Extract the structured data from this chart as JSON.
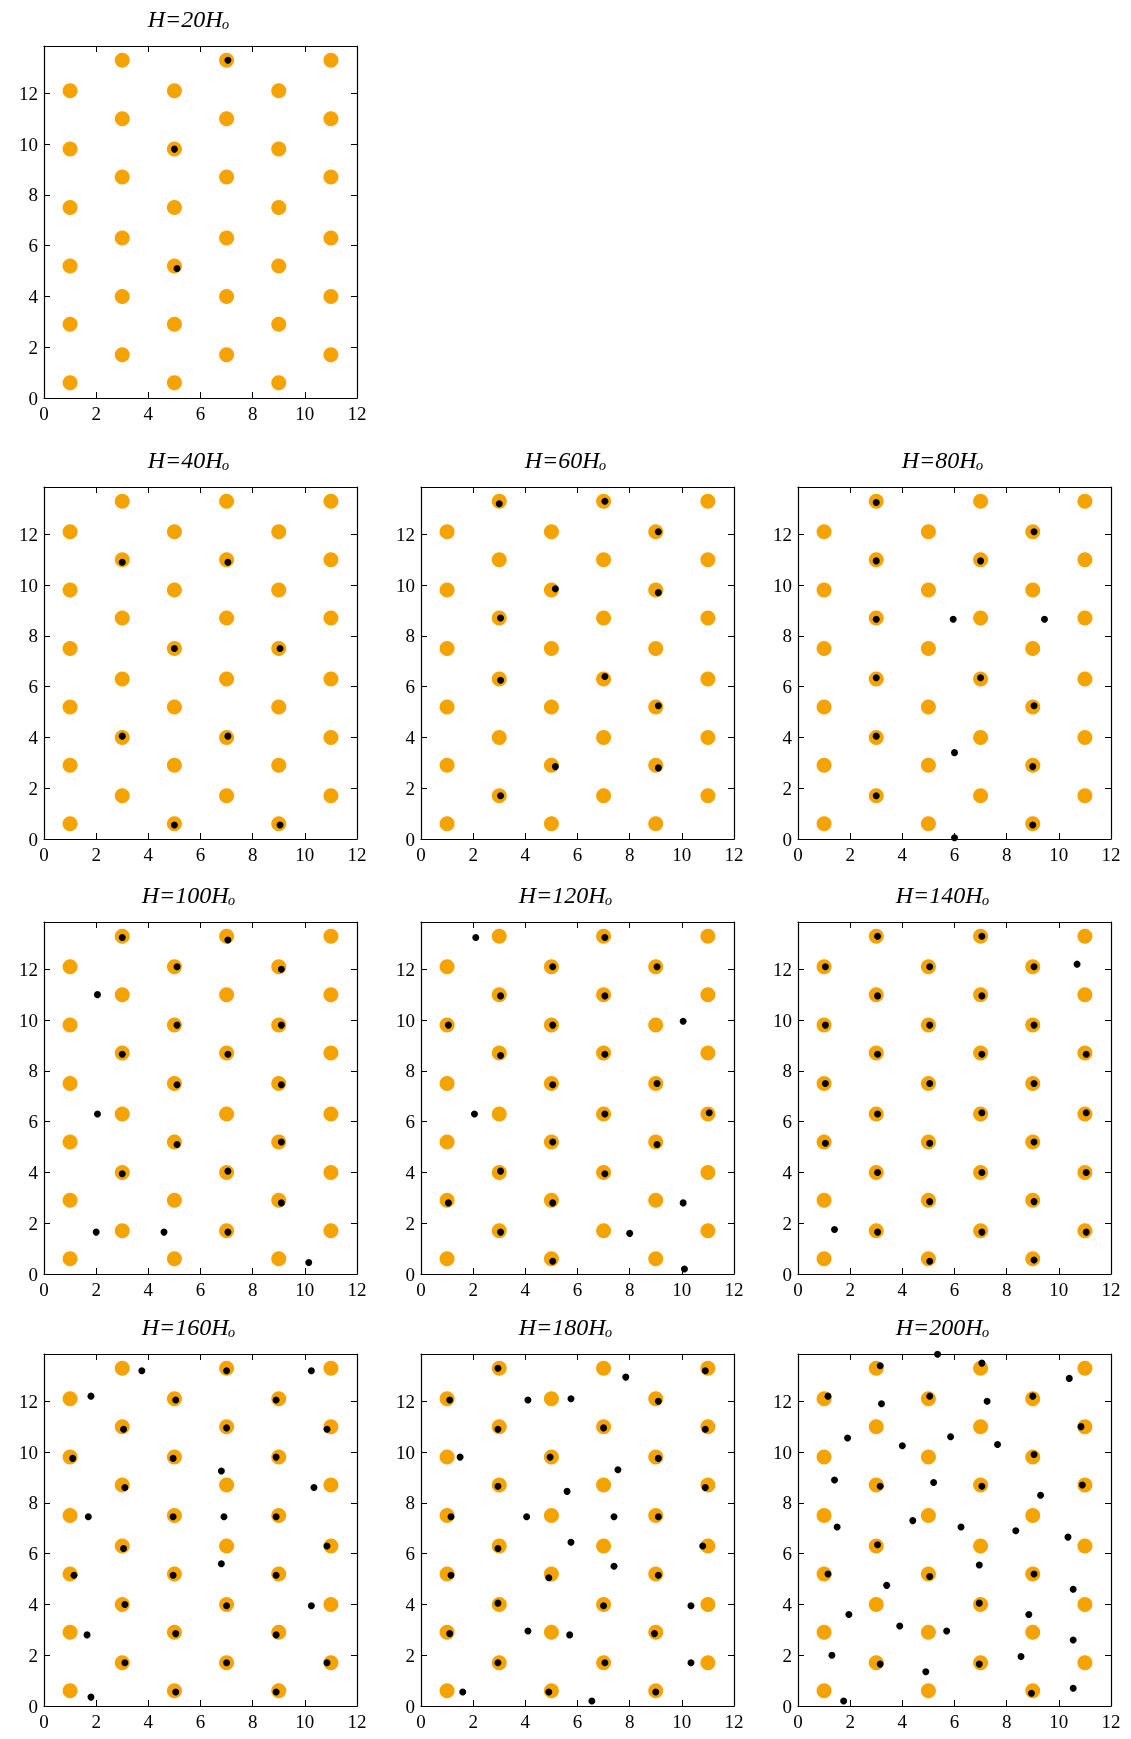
{
  "chart_data": [
    {
      "type": "scatter",
      "title": "H=20Hₒ",
      "xlim": [
        0,
        12
      ],
      "ylim": [
        0,
        13.86
      ],
      "xticks": [
        0,
        2,
        4,
        6,
        8,
        10,
        12
      ],
      "yticks": [
        0,
        2,
        4,
        6,
        8,
        10,
        12
      ],
      "marker": "circle",
      "series": [
        {
          "color": "#f5a300",
          "x": [
            1,
            1,
            1,
            1,
            1,
            1,
            3,
            3,
            3,
            3,
            3,
            3,
            5,
            5,
            5,
            5,
            5,
            5,
            7,
            7,
            7,
            7,
            7,
            7,
            9,
            9,
            9,
            9,
            9,
            9,
            11,
            11,
            11,
            11,
            11,
            11
          ],
          "values": [
            0.6,
            2.9,
            5.2,
            7.5,
            9.8,
            12.1,
            1.7,
            4.0,
            6.3,
            8.7,
            11.0,
            13.3,
            0.6,
            2.9,
            5.2,
            7.5,
            9.8,
            12.1,
            1.7,
            4.0,
            6.3,
            8.7,
            11.0,
            13.3,
            0.6,
            2.9,
            5.2,
            7.5,
            9.8,
            12.1,
            1.7,
            4.0,
            6.3,
            8.7,
            11.0,
            13.3
          ]
        },
        {
          "color": "#000000",
          "x": [
            7.05,
            5.0,
            5.1
          ],
          "values": [
            13.3,
            9.8,
            5.1
          ]
        }
      ]
    },
    {
      "type": "scatter",
      "title": "H=40Hₒ",
      "xlim": [
        0,
        12
      ],
      "ylim": [
        0,
        13.86
      ],
      "xticks": [
        0,
        2,
        4,
        6,
        8,
        10,
        12
      ],
      "yticks": [
        0,
        2,
        4,
        6,
        8,
        10,
        12
      ],
      "marker": "circle",
      "series": [
        {
          "color": "#f5a300",
          "x": [
            1,
            1,
            1,
            1,
            1,
            1,
            3,
            3,
            3,
            3,
            3,
            3,
            5,
            5,
            5,
            5,
            5,
            5,
            7,
            7,
            7,
            7,
            7,
            7,
            9,
            9,
            9,
            9,
            9,
            9,
            11,
            11,
            11,
            11,
            11,
            11
          ],
          "values": [
            0.6,
            2.9,
            5.2,
            7.5,
            9.8,
            12.1,
            1.7,
            4.0,
            6.3,
            8.7,
            11.0,
            13.3,
            0.6,
            2.9,
            5.2,
            7.5,
            9.8,
            12.1,
            1.7,
            4.0,
            6.3,
            8.7,
            11.0,
            13.3,
            0.6,
            2.9,
            5.2,
            7.5,
            9.8,
            12.1,
            1.7,
            4.0,
            6.3,
            8.7,
            11.0,
            13.3
          ]
        },
        {
          "color": "#000000",
          "x": [
            3.0,
            7.05,
            5.0,
            9.05,
            3.0,
            7.05,
            5.0,
            9.05
          ],
          "values": [
            10.9,
            10.9,
            7.5,
            7.5,
            4.05,
            4.05,
            0.55,
            0.55
          ]
        }
      ]
    },
    {
      "type": "scatter",
      "title": "H=60Hₒ",
      "xlim": [
        0,
        12
      ],
      "ylim": [
        0,
        13.86
      ],
      "xticks": [
        0,
        2,
        4,
        6,
        8,
        10,
        12
      ],
      "yticks": [
        0,
        2,
        4,
        6,
        8,
        10,
        12
      ],
      "marker": "circle",
      "series": [
        {
          "color": "#f5a300",
          "x": [
            1,
            1,
            1,
            1,
            1,
            1,
            3,
            3,
            3,
            3,
            3,
            3,
            5,
            5,
            5,
            5,
            5,
            5,
            7,
            7,
            7,
            7,
            7,
            7,
            9,
            9,
            9,
            9,
            9,
            9,
            11,
            11,
            11,
            11,
            11,
            11
          ],
          "values": [
            0.6,
            2.9,
            5.2,
            7.5,
            9.8,
            12.1,
            1.7,
            4.0,
            6.3,
            8.7,
            11.0,
            13.3,
            0.6,
            2.9,
            5.2,
            7.5,
            9.8,
            12.1,
            1.7,
            4.0,
            6.3,
            8.7,
            11.0,
            13.3,
            0.6,
            2.9,
            5.2,
            7.5,
            9.8,
            12.1,
            1.7,
            4.0,
            6.3,
            8.7,
            11.0,
            13.3
          ]
        },
        {
          "color": "#000000",
          "x": [
            3.0,
            7.05,
            9.1,
            5.15,
            9.1,
            3.05,
            3.05,
            7.05,
            9.1,
            5.15,
            9.1,
            3.05
          ],
          "values": [
            13.2,
            13.3,
            12.1,
            9.85,
            9.7,
            8.7,
            6.25,
            6.4,
            5.25,
            2.85,
            2.8,
            1.7
          ]
        }
      ]
    },
    {
      "type": "scatter",
      "title": "H=80Hₒ",
      "xlim": [
        0,
        12
      ],
      "ylim": [
        0,
        13.86
      ],
      "xticks": [
        0,
        2,
        4,
        6,
        8,
        10,
        12
      ],
      "yticks": [
        0,
        2,
        4,
        6,
        8,
        10,
        12
      ],
      "marker": "circle",
      "series": [
        {
          "color": "#f5a300",
          "x": [
            1,
            1,
            1,
            1,
            1,
            1,
            3,
            3,
            3,
            3,
            3,
            3,
            5,
            5,
            5,
            5,
            5,
            5,
            7,
            7,
            7,
            7,
            7,
            7,
            9,
            9,
            9,
            9,
            9,
            9,
            11,
            11,
            11,
            11,
            11,
            11
          ],
          "values": [
            0.6,
            2.9,
            5.2,
            7.5,
            9.8,
            12.1,
            1.7,
            4.0,
            6.3,
            8.7,
            11.0,
            13.3,
            0.6,
            2.9,
            5.2,
            7.5,
            9.8,
            12.1,
            1.7,
            4.0,
            6.3,
            8.7,
            11.0,
            13.3,
            0.6,
            2.9,
            5.2,
            7.5,
            9.8,
            12.1,
            1.7,
            4.0,
            6.3,
            8.7,
            11.0,
            13.3
          ]
        },
        {
          "color": "#000000",
          "x": [
            3.0,
            9.05,
            3.0,
            7.0,
            3.0,
            5.95,
            9.45,
            3.0,
            7.0,
            9.05,
            3.0,
            6.0,
            9.0,
            3.0,
            9.0,
            6.0
          ],
          "values": [
            13.25,
            12.1,
            10.95,
            10.95,
            8.65,
            8.65,
            8.65,
            6.35,
            6.35,
            5.25,
            4.05,
            3.4,
            2.85,
            1.7,
            0.55,
            0.05
          ]
        }
      ]
    },
    {
      "type": "scatter",
      "title": "H=100Hₒ",
      "xlim": [
        0,
        12
      ],
      "ylim": [
        0,
        13.86
      ],
      "xticks": [
        0,
        2,
        4,
        6,
        8,
        10,
        12
      ],
      "yticks": [
        0,
        2,
        4,
        6,
        8,
        10,
        12
      ],
      "marker": "circle",
      "series": [
        {
          "color": "#f5a300",
          "x": [
            1,
            1,
            1,
            1,
            1,
            1,
            3,
            3,
            3,
            3,
            3,
            3,
            5,
            5,
            5,
            5,
            5,
            5,
            7,
            7,
            7,
            7,
            7,
            7,
            9,
            9,
            9,
            9,
            9,
            9,
            11,
            11,
            11,
            11,
            11,
            11
          ],
          "values": [
            0.6,
            2.9,
            5.2,
            7.5,
            9.8,
            12.1,
            1.7,
            4.0,
            6.3,
            8.7,
            11.0,
            13.3,
            0.6,
            2.9,
            5.2,
            7.5,
            9.8,
            12.1,
            1.7,
            4.0,
            6.3,
            8.7,
            11.0,
            13.3,
            0.6,
            2.9,
            5.2,
            7.5,
            9.8,
            12.1,
            1.7,
            4.0,
            6.3,
            8.7,
            11.0,
            13.3
          ]
        },
        {
          "color": "#000000",
          "x": [
            3.0,
            7.05,
            5.1,
            9.1,
            2.05,
            5.1,
            9.1,
            3.0,
            7.05,
            5.1,
            9.1,
            2.05,
            5.1,
            9.1,
            3.0,
            7.05,
            9.1,
            2.0,
            4.6,
            7.05,
            10.15
          ],
          "values": [
            13.25,
            13.15,
            12.1,
            12.0,
            11.0,
            9.8,
            9.8,
            8.65,
            8.65,
            7.45,
            7.45,
            6.3,
            5.1,
            5.2,
            3.95,
            4.05,
            2.8,
            1.65,
            1.65,
            1.65,
            0.45
          ]
        }
      ]
    },
    {
      "type": "scatter",
      "title": "H=120Hₒ",
      "xlim": [
        0,
        12
      ],
      "ylim": [
        0,
        13.86
      ],
      "xticks": [
        0,
        2,
        4,
        6,
        8,
        10,
        12
      ],
      "yticks": [
        0,
        2,
        4,
        6,
        8,
        10,
        12
      ],
      "marker": "circle",
      "series": [
        {
          "color": "#f5a300",
          "x": [
            1,
            1,
            1,
            1,
            1,
            1,
            3,
            3,
            3,
            3,
            3,
            3,
            5,
            5,
            5,
            5,
            5,
            5,
            7,
            7,
            7,
            7,
            7,
            7,
            9,
            9,
            9,
            9,
            9,
            9,
            11,
            11,
            11,
            11,
            11,
            11
          ],
          "values": [
            0.6,
            2.9,
            5.2,
            7.5,
            9.8,
            12.1,
            1.7,
            4.0,
            6.3,
            8.7,
            11.0,
            13.3,
            0.6,
            2.9,
            5.2,
            7.5,
            9.8,
            12.1,
            1.7,
            4.0,
            6.3,
            8.7,
            11.0,
            13.3,
            0.6,
            2.9,
            5.2,
            7.5,
            9.8,
            12.1,
            1.7,
            4.0,
            6.3,
            8.7,
            11.0,
            13.3
          ]
        },
        {
          "color": "#000000",
          "x": [
            2.1,
            7.05,
            5.05,
            9.05,
            3.05,
            7.05,
            1.05,
            5.05,
            10.05,
            3.05,
            7.05,
            5.05,
            9.05,
            2.05,
            7.05,
            11.05,
            5.05,
            9.05,
            3.05,
            7.05,
            1.05,
            5.05,
            10.05,
            3.05,
            8.0,
            5.05,
            10.1
          ],
          "values": [
            13.25,
            13.25,
            12.1,
            12.1,
            10.95,
            10.95,
            9.8,
            9.8,
            9.95,
            8.6,
            8.65,
            7.45,
            7.5,
            6.3,
            6.3,
            6.35,
            5.2,
            5.1,
            4.05,
            3.95,
            2.8,
            2.8,
            2.8,
            1.65,
            1.6,
            0.5,
            0.2
          ]
        }
      ]
    },
    {
      "type": "scatter",
      "title": "H=140Hₒ",
      "xlim": [
        0,
        12
      ],
      "ylim": [
        0,
        13.86
      ],
      "xticks": [
        0,
        2,
        4,
        6,
        8,
        10,
        12
      ],
      "yticks": [
        0,
        2,
        4,
        6,
        8,
        10,
        12
      ],
      "marker": "circle",
      "series": [
        {
          "color": "#f5a300",
          "x": [
            1,
            1,
            1,
            1,
            1,
            1,
            3,
            3,
            3,
            3,
            3,
            3,
            5,
            5,
            5,
            5,
            5,
            5,
            7,
            7,
            7,
            7,
            7,
            7,
            9,
            9,
            9,
            9,
            9,
            9,
            11,
            11,
            11,
            11,
            11,
            11
          ],
          "values": [
            0.6,
            2.9,
            5.2,
            7.5,
            9.8,
            12.1,
            1.7,
            4.0,
            6.3,
            8.7,
            11.0,
            13.3,
            0.6,
            2.9,
            5.2,
            7.5,
            9.8,
            12.1,
            1.7,
            4.0,
            6.3,
            8.7,
            11.0,
            13.3,
            0.6,
            2.9,
            5.2,
            7.5,
            9.8,
            12.1,
            1.7,
            4.0,
            6.3,
            8.7,
            11.0,
            13.3
          ]
        },
        {
          "color": "#000000",
          "x": [
            1.05,
            1.05,
            1.05,
            1.05,
            3.05,
            3.05,
            3.05,
            3.05,
            3.05,
            3.05,
            5.05,
            5.05,
            5.05,
            5.05,
            5.05,
            5.05,
            7.05,
            7.05,
            7.05,
            7.05,
            7.05,
            7.05,
            9.05,
            9.05,
            9.05,
            9.05,
            9.05,
            9.05,
            11.05,
            11.05,
            11.05,
            11.05,
            10.7,
            1.4
          ],
          "values": [
            12.1,
            9.8,
            7.5,
            5.15,
            13.3,
            10.95,
            8.65,
            6.3,
            4.0,
            1.65,
            12.1,
            9.8,
            7.5,
            5.15,
            2.85,
            0.5,
            13.3,
            10.95,
            8.65,
            6.35,
            4.0,
            1.65,
            12.1,
            9.8,
            7.5,
            5.2,
            2.85,
            0.55,
            8.65,
            6.35,
            4.0,
            1.65,
            12.2,
            1.75
          ]
        }
      ]
    },
    {
      "type": "scatter",
      "title": "H=160Hₒ",
      "xlim": [
        0,
        12
      ],
      "ylim": [
        0,
        13.86
      ],
      "xticks": [
        0,
        2,
        4,
        6,
        8,
        10,
        12
      ],
      "yticks": [
        0,
        2,
        4,
        6,
        8,
        10,
        12
      ],
      "marker": "circle",
      "series": [
        {
          "color": "#f5a300",
          "x": [
            1,
            1,
            1,
            1,
            1,
            1,
            3,
            3,
            3,
            3,
            3,
            3,
            5,
            5,
            5,
            5,
            5,
            5,
            7,
            7,
            7,
            7,
            7,
            7,
            9,
            9,
            9,
            9,
            9,
            9,
            11,
            11,
            11,
            11,
            11,
            11
          ],
          "values": [
            0.6,
            2.9,
            5.2,
            7.5,
            9.8,
            12.1,
            1.7,
            4.0,
            6.3,
            8.7,
            11.0,
            13.3,
            0.6,
            2.9,
            5.2,
            7.5,
            9.8,
            12.1,
            1.7,
            4.0,
            6.3,
            8.7,
            11.0,
            13.3,
            0.6,
            2.9,
            5.2,
            7.5,
            9.8,
            12.1,
            1.7,
            4.0,
            6.3,
            8.7,
            11.0,
            13.3
          ]
        },
        {
          "color": "#000000",
          "x": [
            3.75,
            7.0,
            10.25,
            1.8,
            5.05,
            8.9,
            3.05,
            7.0,
            10.85,
            1.1,
            4.95,
            8.9,
            6.8,
            3.1,
            10.35,
            1.7,
            4.95,
            6.9,
            8.9,
            3.05,
            10.85,
            6.8,
            1.15,
            4.95,
            8.9,
            3.1,
            7.0,
            10.25,
            1.65,
            5.05,
            8.9,
            3.1,
            7.0,
            10.85,
            1.8,
            5.05,
            8.9
          ],
          "values": [
            13.2,
            13.2,
            13.2,
            12.2,
            12.05,
            12.05,
            10.9,
            10.95,
            10.9,
            9.75,
            9.75,
            9.8,
            9.25,
            8.6,
            8.6,
            7.45,
            7.45,
            7.45,
            7.45,
            6.2,
            6.3,
            5.6,
            5.15,
            5.15,
            5.15,
            4.0,
            3.95,
            3.95,
            2.8,
            2.85,
            2.8,
            1.7,
            1.7,
            1.7,
            0.35,
            0.55,
            0.55
          ]
        }
      ]
    },
    {
      "type": "scatter",
      "title": "H=180Hₒ",
      "xlim": [
        0,
        12
      ],
      "ylim": [
        0,
        13.86
      ],
      "xticks": [
        0,
        2,
        4,
        6,
        8,
        10,
        12
      ],
      "yticks": [
        0,
        2,
        4,
        6,
        8,
        10,
        12
      ],
      "marker": "circle",
      "series": [
        {
          "color": "#f5a300",
          "x": [
            1,
            1,
            1,
            1,
            1,
            1,
            3,
            3,
            3,
            3,
            3,
            3,
            5,
            5,
            5,
            5,
            5,
            5,
            7,
            7,
            7,
            7,
            7,
            7,
            9,
            9,
            9,
            9,
            9,
            9,
            11,
            11,
            11,
            11,
            11,
            11
          ],
          "values": [
            0.6,
            2.9,
            5.2,
            7.5,
            9.8,
            12.1,
            1.7,
            4.0,
            6.3,
            8.7,
            11.0,
            13.3,
            0.6,
            2.9,
            5.2,
            7.5,
            9.8,
            12.1,
            1.7,
            4.0,
            6.3,
            8.7,
            11.0,
            13.3,
            0.6,
            2.9,
            5.2,
            7.5,
            9.8,
            12.1,
            1.7,
            4.0,
            6.3,
            8.7,
            11.0,
            13.3
          ]
        },
        {
          "color": "#000000",
          "x": [
            2.95,
            7.85,
            10.9,
            1.1,
            4.1,
            5.75,
            9.1,
            2.95,
            7.0,
            10.9,
            1.5,
            4.95,
            7.55,
            9.1,
            2.95,
            5.6,
            10.9,
            1.15,
            4.05,
            7.4,
            9.1,
            2.95,
            5.75,
            10.8,
            1.15,
            4.9,
            7.4,
            9.1,
            2.95,
            7.0,
            10.35,
            1.1,
            4.1,
            5.7,
            8.95,
            2.95,
            7.05,
            10.35,
            1.6,
            4.9,
            6.55,
            9.0
          ],
          "values": [
            13.3,
            12.95,
            13.2,
            12.05,
            12.05,
            12.1,
            12.0,
            10.9,
            10.95,
            10.9,
            9.8,
            9.8,
            9.3,
            9.75,
            8.65,
            8.45,
            8.6,
            7.45,
            7.45,
            7.45,
            7.45,
            6.2,
            6.45,
            6.3,
            5.15,
            5.05,
            5.5,
            5.15,
            4.05,
            3.95,
            3.95,
            2.85,
            2.95,
            2.8,
            2.85,
            1.7,
            1.7,
            1.7,
            0.55,
            0.55,
            0.2,
            0.55
          ]
        }
      ]
    },
    {
      "type": "scatter",
      "title": "H=200Hₒ",
      "xlim": [
        0,
        12
      ],
      "ylim": [
        0,
        13.86
      ],
      "xticks": [
        0,
        2,
        4,
        6,
        8,
        10,
        12
      ],
      "yticks": [
        0,
        2,
        4,
        6,
        8,
        10,
        12
      ],
      "marker": "circle",
      "series": [
        {
          "color": "#f5a300",
          "x": [
            1,
            1,
            1,
            1,
            1,
            1,
            3,
            3,
            3,
            3,
            3,
            3,
            5,
            5,
            5,
            5,
            5,
            5,
            7,
            7,
            7,
            7,
            7,
            7,
            9,
            9,
            9,
            9,
            9,
            9,
            11,
            11,
            11,
            11,
            11,
            11
          ],
          "values": [
            0.6,
            2.9,
            5.2,
            7.5,
            9.8,
            12.1,
            1.7,
            4.0,
            6.3,
            8.7,
            11.0,
            13.3,
            0.6,
            2.9,
            5.2,
            7.5,
            9.8,
            12.1,
            1.7,
            4.0,
            6.3,
            8.7,
            11.0,
            13.3,
            0.6,
            2.9,
            5.2,
            7.5,
            9.8,
            12.1,
            1.7,
            4.0,
            6.3,
            8.7,
            11.0,
            13.3
          ]
        },
        {
          "color": "#000000",
          "x": [
            5.35,
            3.15,
            7.05,
            10.4,
            1.15,
            5.05,
            9.0,
            3.2,
            7.25,
            10.85,
            1.9,
            5.85,
            4.0,
            7.65,
            9.05,
            1.4,
            5.2,
            3.15,
            7.05,
            10.9,
            9.3,
            4.4,
            1.5,
            6.25,
            8.35,
            10.35,
            3.05,
            6.95,
            1.15,
            5.05,
            9.05,
            3.4,
            10.55,
            6.95,
            1.95,
            8.85,
            3.9,
            5.7,
            10.55,
            1.3,
            8.55,
            3.15,
            6.95,
            4.9,
            10.55,
            8.95,
            1.75
          ],
          "values": [
            13.85,
            13.4,
            13.5,
            12.9,
            12.2,
            12.2,
            12.2,
            11.9,
            12.0,
            11.0,
            10.55,
            10.6,
            10.25,
            10.3,
            9.9,
            8.9,
            8.8,
            8.65,
            8.65,
            8.7,
            8.3,
            7.3,
            7.05,
            7.05,
            6.9,
            6.65,
            6.35,
            5.55,
            5.2,
            5.1,
            5.2,
            4.75,
            4.6,
            4.05,
            3.6,
            3.6,
            3.15,
            2.95,
            2.6,
            2.0,
            1.95,
            1.65,
            1.65,
            1.35,
            0.7,
            0.5,
            0.2
          ]
        }
      ]
    }
  ]
}
